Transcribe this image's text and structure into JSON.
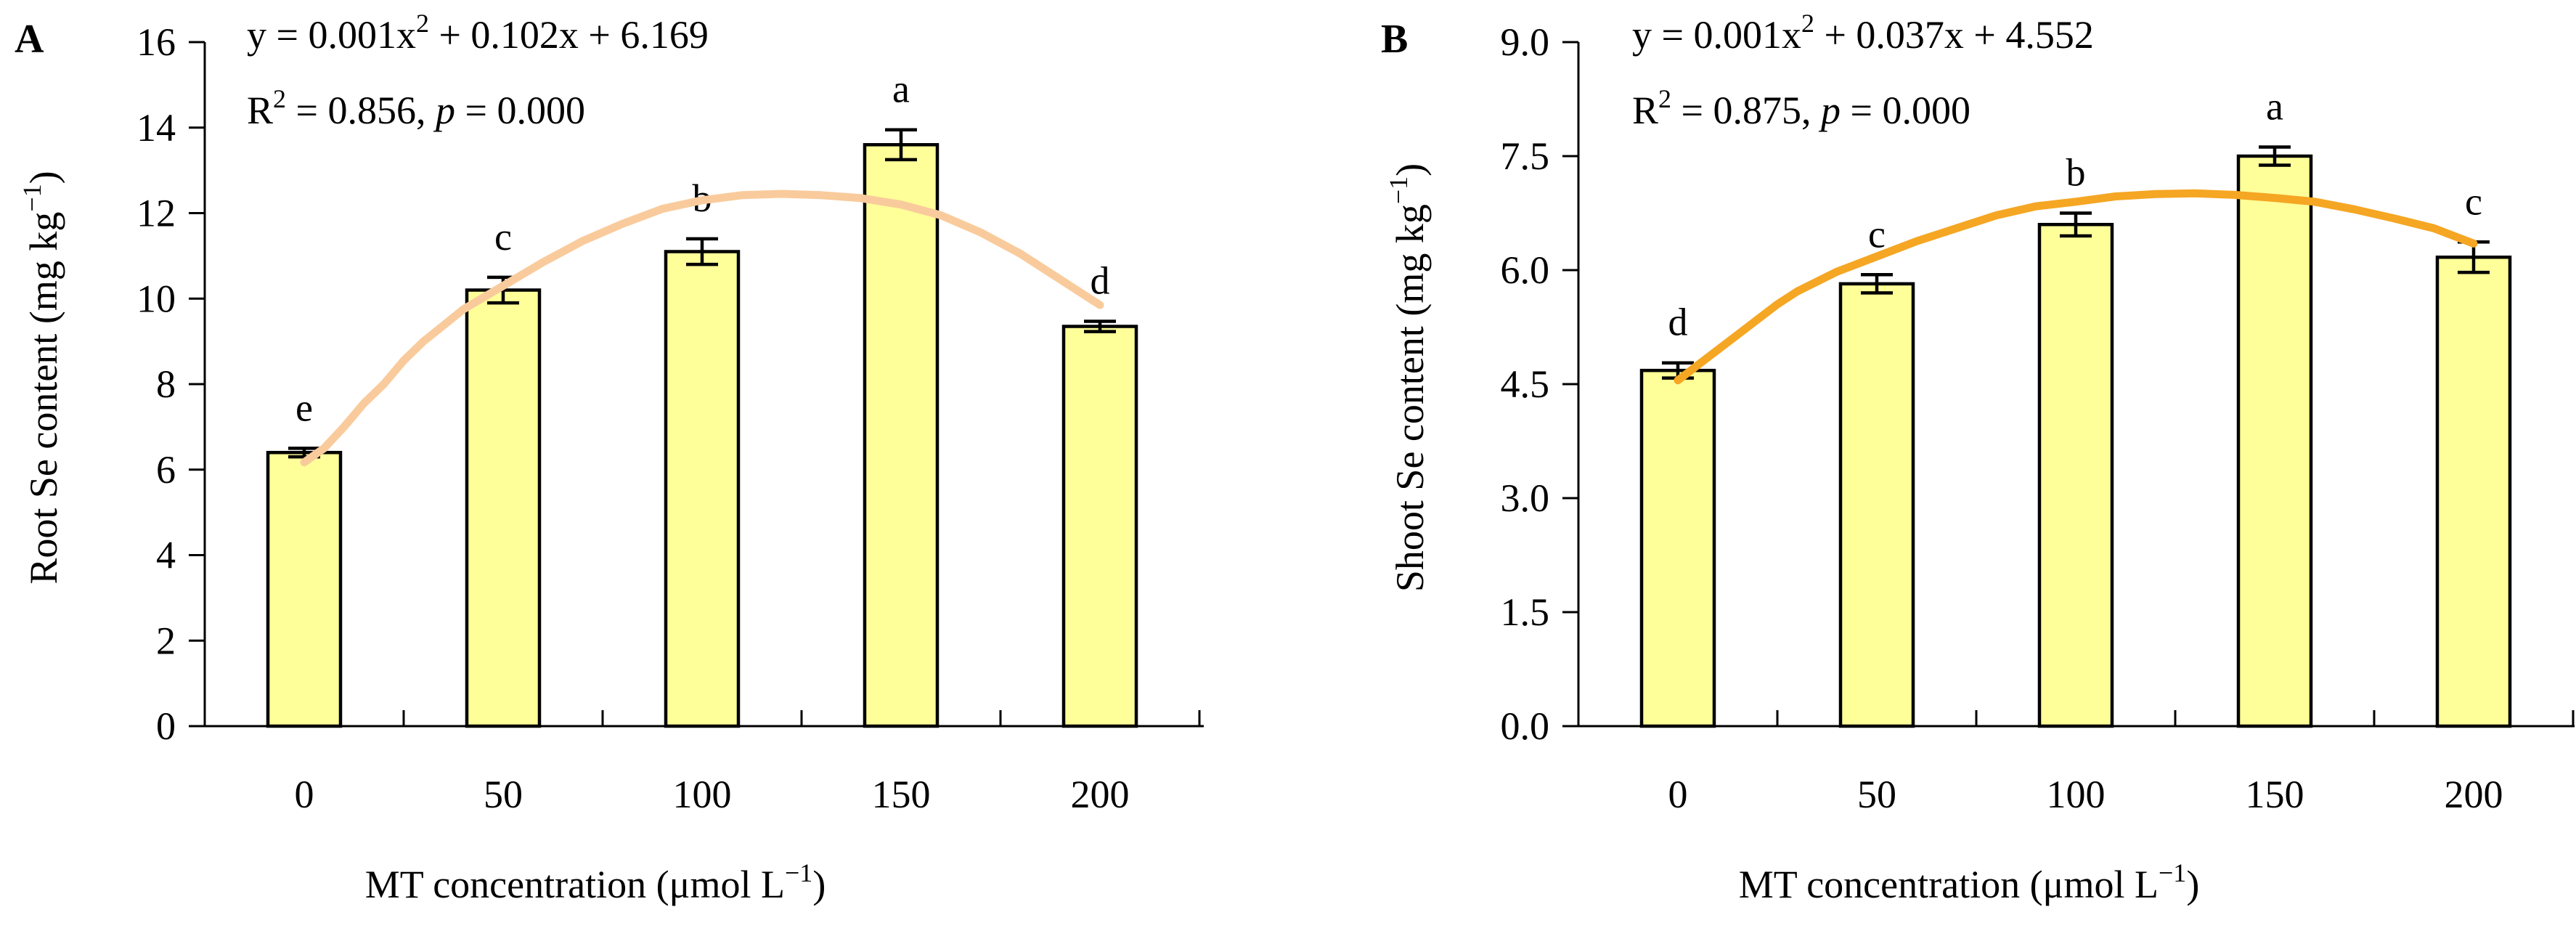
{
  "colors": {
    "bar_fill": "#ffff99",
    "bar_stroke": "#000000",
    "fit_A": "#f9cb9c",
    "fit_B": "#f5a623"
  },
  "chart_data": [
    {
      "panel": "A",
      "type": "bar",
      "categories": [
        "0",
        "50",
        "100",
        "150",
        "200"
      ],
      "x": [
        0,
        50,
        100,
        150,
        200
      ],
      "values": [
        6.4,
        10.2,
        11.1,
        13.6,
        9.35
      ],
      "errors": [
        0.1,
        0.3,
        0.3,
        0.35,
        0.12
      ],
      "sig_letters": [
        "e",
        "c",
        "b",
        "a",
        "d"
      ],
      "equation_pre": "y = 0.001x",
      "equation_sup": "2",
      "equation_post": " + 0.102x + 6.169",
      "r2_pre": "R",
      "r2_sup": "2",
      "r2_post": " = 0.856, ",
      "p_symbol": "p",
      "p_post": " = 0.000",
      "fit_curve": {
        "x": [
          0,
          5,
          10,
          15,
          20,
          25,
          30,
          40,
          50,
          60,
          70,
          80,
          90,
          100,
          110,
          120,
          130,
          140,
          150,
          160,
          170,
          180,
          190,
          200
        ],
        "y": [
          6.17,
          6.5,
          7.0,
          7.55,
          8.0,
          8.55,
          9.0,
          9.75,
          10.3,
          10.85,
          11.35,
          11.75,
          12.1,
          12.3,
          12.42,
          12.45,
          12.42,
          12.35,
          12.2,
          11.95,
          11.55,
          11.05,
          10.45,
          9.85
        ]
      },
      "xlabel": "MT concentration (μmol L⁻¹)",
      "ylabel": "Root Se content (mg kg⁻¹)",
      "ylim": [
        0,
        16
      ],
      "yticks": [
        0,
        2,
        4,
        6,
        8,
        10,
        12,
        14,
        16
      ],
      "ytick_labels": [
        "0",
        "2",
        "4",
        "6",
        "8",
        "10",
        "12",
        "14",
        "16"
      ]
    },
    {
      "panel": "B",
      "type": "bar",
      "categories": [
        "0",
        "50",
        "100",
        "150",
        "200"
      ],
      "x": [
        0,
        50,
        100,
        150,
        200
      ],
      "values": [
        4.68,
        5.82,
        6.6,
        7.5,
        6.17
      ],
      "errors": [
        0.1,
        0.12,
        0.15,
        0.12,
        0.2
      ],
      "sig_letters": [
        "d",
        "c",
        "b",
        "a",
        "c"
      ],
      "equation_pre": "y = 0.001x",
      "equation_sup": "2",
      "equation_post": " + 0.037x + 4.552",
      "r2_pre": "R",
      "r2_sup": "2",
      "r2_post": " = 0.875, ",
      "p_symbol": "p",
      "p_post": " = 0.000",
      "fit_curve": {
        "x": [
          0,
          5,
          10,
          15,
          20,
          25,
          30,
          40,
          50,
          60,
          70,
          80,
          90,
          100,
          110,
          120,
          130,
          140,
          150,
          160,
          170,
          180,
          190,
          200
        ],
        "y": [
          4.55,
          4.75,
          4.95,
          5.15,
          5.35,
          5.55,
          5.72,
          5.98,
          6.18,
          6.38,
          6.55,
          6.72,
          6.84,
          6.9,
          6.97,
          7.0,
          7.01,
          6.99,
          6.95,
          6.9,
          6.8,
          6.68,
          6.55,
          6.35
        ]
      },
      "xlabel": "MT concentration (μmol L⁻¹)",
      "ylabel": "Shoot Se content (mg kg⁻¹)",
      "ylim": [
        0,
        9
      ],
      "yticks": [
        0,
        1.5,
        3,
        4.5,
        6,
        7.5,
        9
      ],
      "ytick_labels": [
        "0.0",
        "1.5",
        "3.0",
        "4.5",
        "6.0",
        "7.5",
        "9.0"
      ]
    }
  ]
}
